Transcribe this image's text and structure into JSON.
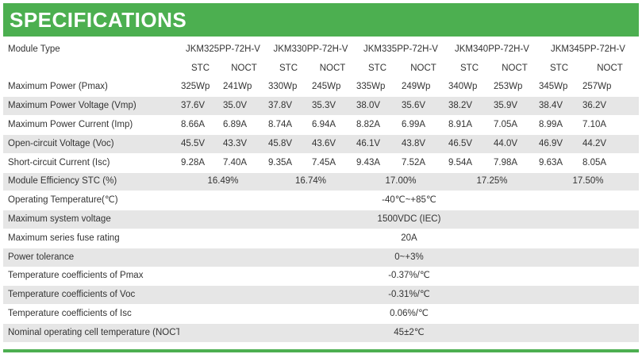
{
  "header": {
    "title": "SPECIFICATIONS"
  },
  "models": {
    "label": "Module Type",
    "names": [
      "JKM325PP-72H-V",
      "JKM330PP-72H-V",
      "JKM335PP-72H-V",
      "JKM340PP-72H-V",
      "JKM345PP-72H-V"
    ]
  },
  "conditions": {
    "stc": "STC",
    "noct": "NOCT"
  },
  "rows": {
    "pmax": {
      "label": "Maximum Power (Pmax)",
      "values": [
        "325Wp",
        "241Wp",
        "330Wp",
        "245Wp",
        "335Wp",
        "249Wp",
        "340Wp",
        "253Wp",
        "345Wp",
        "257Wp"
      ]
    },
    "vmp": {
      "label": "Maximum Power Voltage (Vmp)",
      "values": [
        "37.6V",
        "35.0V",
        "37.8V",
        "35.3V",
        "38.0V",
        "35.6V",
        "38.2V",
        "35.9V",
        "38.4V",
        "36.2V"
      ]
    },
    "imp": {
      "label": "Maximum Power Current (Imp)",
      "values": [
        "8.66A",
        "6.89A",
        "8.74A",
        "6.94A",
        "8.82A",
        "6.99A",
        "8.91A",
        "7.05A",
        "8.99A",
        "7.10A"
      ]
    },
    "voc": {
      "label": "Open-circuit Voltage (Voc)",
      "values": [
        "45.5V",
        "43.3V",
        "45.8V",
        "43.6V",
        "46.1V",
        "43.8V",
        "46.5V",
        "44.0V",
        "46.9V",
        "44.2V"
      ]
    },
    "isc": {
      "label": "Short-circuit Current (Isc)",
      "values": [
        "9.28A",
        "7.40A",
        "9.35A",
        "7.45A",
        "9.43A",
        "7.52A",
        "9.54A",
        "7.98A",
        "9.63A",
        "8.05A"
      ]
    },
    "efficiency": {
      "label": "Module Efficiency STC (%)",
      "values": [
        "16.49%",
        "16.74%",
        "17.00%",
        "17.25%",
        "17.50%"
      ]
    },
    "temp": {
      "label": "Operating Temperature(℃)",
      "value": "-40℃~+85℃"
    },
    "sysv": {
      "label": "Maximum system voltage",
      "value": "1500VDC (IEC)"
    },
    "fuse": {
      "label": "Maximum series fuse rating",
      "value": "20A"
    },
    "tol": {
      "label": "Power tolerance",
      "value": "0~+3%"
    },
    "tc_pmax": {
      "label": "Temperature coefficients of Pmax",
      "value": "-0.37%/℃"
    },
    "tc_voc": {
      "label": "Temperature coefficients of Voc",
      "value": "-0.31%/℃"
    },
    "tc_isc": {
      "label": "Temperature coefficients of Isc",
      "value": "0.06%/℃"
    },
    "noct": {
      "label": "Nominal operating cell temperature  (NOCT)",
      "value": "45±2℃"
    }
  },
  "colors": {
    "accent": "#4caf50",
    "row_shade": "#e6e6e6",
    "text": "#333333"
  }
}
